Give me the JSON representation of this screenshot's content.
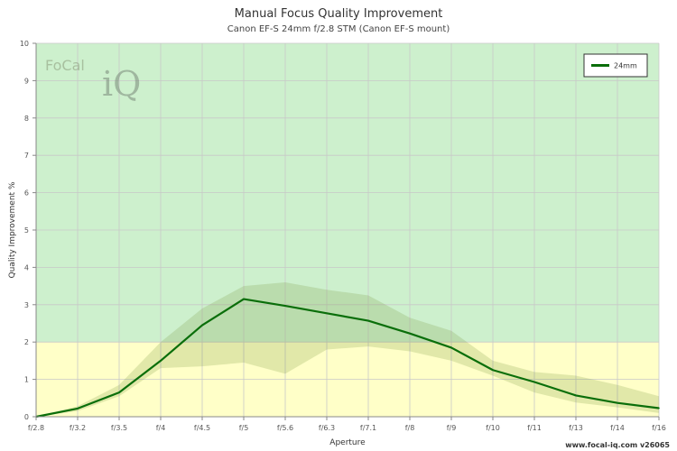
{
  "chart_data": {
    "type": "line",
    "title": "Manual Focus Quality Improvement",
    "subtitle": "Canon EF-S 24mm f/2.8 STM (Canon EF-S mount)",
    "xlabel": "Aperture",
    "ylabel": "Quality Improvement %",
    "categories": [
      "f/2.8",
      "f/3.2",
      "f/3.5",
      "f/4",
      "f/4.5",
      "f/5",
      "f/5.6",
      "f/6.3",
      "f/7.1",
      "f/8",
      "f/9",
      "f/10",
      "f/11",
      "f/13",
      "f/14",
      "f/16"
    ],
    "ylim": [
      0,
      10
    ],
    "yticks": [
      0,
      1,
      2,
      3,
      4,
      5,
      6,
      7,
      8,
      9,
      10
    ],
    "grid": true,
    "legend_position": "top-right",
    "bands": [
      {
        "from": 0,
        "to": 2,
        "color": "#ffffc8"
      },
      {
        "from": 2,
        "to": 10,
        "color": "#cdf0cd"
      }
    ],
    "series": [
      {
        "name": "24mm",
        "color": "#0a6e0a",
        "values": [
          0,
          0.22,
          0.65,
          1.5,
          2.45,
          3.15,
          2.97,
          2.77,
          2.57,
          2.23,
          1.85,
          1.25,
          0.93,
          0.57,
          0.37,
          0.23
        ],
        "upper": [
          0,
          0.28,
          0.85,
          2.0,
          2.9,
          3.5,
          3.6,
          3.4,
          3.25,
          2.65,
          2.3,
          1.5,
          1.2,
          1.1,
          0.85,
          0.55
        ],
        "lower": [
          0,
          0.15,
          0.55,
          1.3,
          1.35,
          1.45,
          1.15,
          1.8,
          1.88,
          1.75,
          1.5,
          1.1,
          0.65,
          0.38,
          0.25,
          0.1
        ]
      }
    ]
  },
  "logo": {
    "text_top": "FoCal",
    "text_bottom": "iQ"
  },
  "footer": "www.focal-iq.com  v26065"
}
